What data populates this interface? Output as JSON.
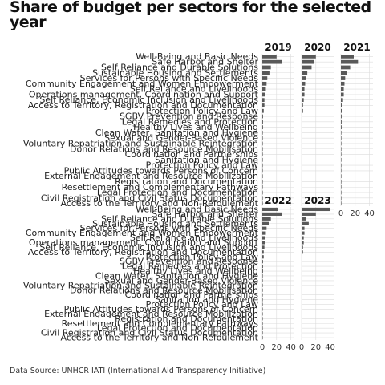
{
  "title": "Share of budget per sectors for the selected year",
  "caption": "Data Source: UNHCR IATI (International Aid Transparency Initiative)",
  "chart_data": {
    "type": "bar",
    "orientation": "horizontal",
    "title": "Share of budget per sectors for the selected year",
    "xlabel": "",
    "ylabel": "",
    "xlim": [
      0,
      45
    ],
    "x_ticks": [
      0,
      20,
      40
    ],
    "x_tick_labels": [
      "0",
      "20",
      "40"
    ],
    "grid": true,
    "bar_color": "#595959",
    "categories": [
      "Well-Being and Basic Needs",
      "Safe Harbor and Shelter",
      "Self Reliance and Durable Solutions",
      "Sustainable Housing and Settlements",
      "Services for Persons with Specific Needs",
      "Community Engagement and Women Empowerment",
      "Self Reliance and Livelihoods",
      "Operations management, Coordination and Support",
      "Self Reliance, Economic Inclusion and Livelihoods",
      "Access to Territory, Registration and Documentation",
      "Protection Policy and Law",
      "SGBV Prevention and Response",
      "Legal Remedies and Protection",
      "Healthy Lives and Wellbeing",
      "Clean Water, Sanitation and Hygiene",
      "Sexual and Gender-Based Violence",
      "Voluntary Repatriation and Sustainable Reintegration",
      "Donor Relations and Resource Mobilisation",
      "Coordination and Partnerships",
      "Sanitation and Hygiene",
      "Protection Policy and Law",
      "Public Attitudes towards Persons of Concern",
      "External Engagement and Resource Mobilization",
      "Registration and Documentation",
      "Resettlement and Complementary Pathways",
      "Legal Protection and Documentation",
      "Civil Registration and Civil Status Documentation",
      "Access to the Territory and Non-Refoulement"
    ],
    "series": [
      {
        "name": "2019",
        "values": [
          20,
          28,
          12,
          10,
          7,
          6,
          5,
          4,
          3,
          3,
          2,
          1,
          1,
          1,
          0.5,
          0.5,
          0.3,
          0.3,
          0.2,
          0.2,
          0.2,
          0.1,
          0.1,
          0.1,
          0.1,
          0.1,
          0.1,
          0.1
        ]
      },
      {
        "name": "2020",
        "values": [
          20,
          18,
          14,
          8,
          6,
          5,
          4,
          4,
          3,
          2,
          2,
          1,
          1,
          1,
          0.5,
          0.5,
          0.3,
          0.3,
          0.2,
          0.2,
          0.2,
          0.1,
          0.1,
          0.1,
          0.1,
          0.1,
          0.1,
          0.1
        ]
      },
      {
        "name": "2021",
        "values": [
          18,
          24,
          13,
          9,
          6,
          5,
          4,
          4,
          3,
          2,
          2,
          1,
          1,
          1,
          0.5,
          0.5,
          0.3,
          0.3,
          0.2,
          0.2,
          0.2,
          0.1,
          0.1,
          0.1,
          0.1,
          0.1,
          0.1,
          0.1
        ]
      },
      {
        "name": "2022",
        "values": [
          22,
          28,
          12,
          9,
          6,
          5,
          4,
          4,
          3,
          2,
          2,
          1,
          1,
          1,
          0.5,
          0.5,
          0.3,
          0.3,
          0.2,
          0.2,
          0.2,
          0.1,
          0.1,
          0.1,
          0.1,
          0.1,
          0.1,
          0.1
        ]
      },
      {
        "name": "2023",
        "values": [
          40,
          20,
          6,
          10,
          4,
          4,
          3,
          3,
          2,
          2,
          1,
          1,
          1,
          1,
          0.5,
          0.5,
          0.3,
          0.3,
          0.2,
          0.2,
          0.2,
          0.1,
          0.1,
          0.1,
          0.1,
          0.1,
          0.1,
          0.1
        ]
      }
    ]
  }
}
